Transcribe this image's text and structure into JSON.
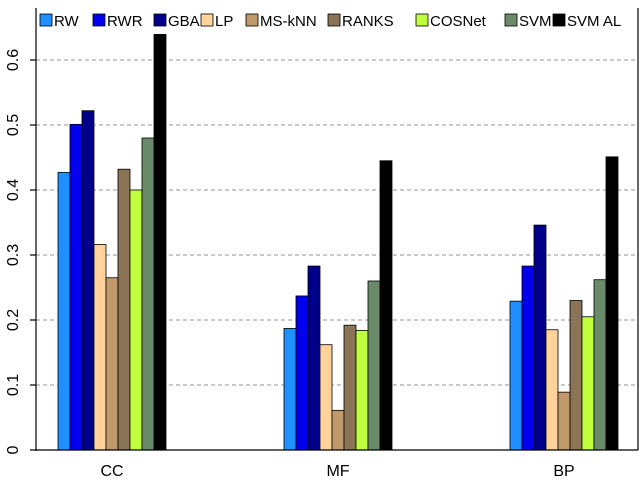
{
  "chart_data": {
    "type": "bar",
    "title": "",
    "xlabel": "",
    "ylabel": "",
    "ylim": [
      0,
      0.68
    ],
    "yticks": [
      0,
      0.1,
      0.2,
      0.3,
      0.4,
      0.5,
      0.6
    ],
    "ytick_labels": [
      "0",
      "0.1",
      "0.2",
      "0.3",
      "0.4",
      "0.5",
      "0.6"
    ],
    "grid": "horizontal dashed",
    "legend_position": "top",
    "categories": [
      "CC",
      "MF",
      "BP"
    ],
    "series": [
      {
        "name": "RW",
        "color": "#1e90ff",
        "values": [
          0.427,
          0.187,
          0.229
        ]
      },
      {
        "name": "RWR",
        "color": "#0000ee",
        "values": [
          0.501,
          0.237,
          0.283
        ]
      },
      {
        "name": "GBA",
        "color": "#00008b",
        "values": [
          0.522,
          0.283,
          0.346
        ]
      },
      {
        "name": "LP",
        "color": "#ffd39b",
        "values": [
          0.316,
          0.162,
          0.185
        ]
      },
      {
        "name": "MS-kNN",
        "color": "#c19a6b",
        "values": [
          0.265,
          0.061,
          0.089
        ]
      },
      {
        "name": "RANKS",
        "color": "#8b7355",
        "values": [
          0.432,
          0.192,
          0.23
        ]
      },
      {
        "name": "COSNet",
        "color": "#c0ff3e",
        "values": [
          0.4,
          0.184,
          0.205
        ]
      },
      {
        "name": "SVM",
        "color": "#698b69",
        "values": [
          0.48,
          0.26,
          0.262
        ]
      },
      {
        "name": "SVM AL",
        "color": "#000000",
        "values": [
          0.647,
          0.445,
          0.451
        ]
      }
    ]
  }
}
